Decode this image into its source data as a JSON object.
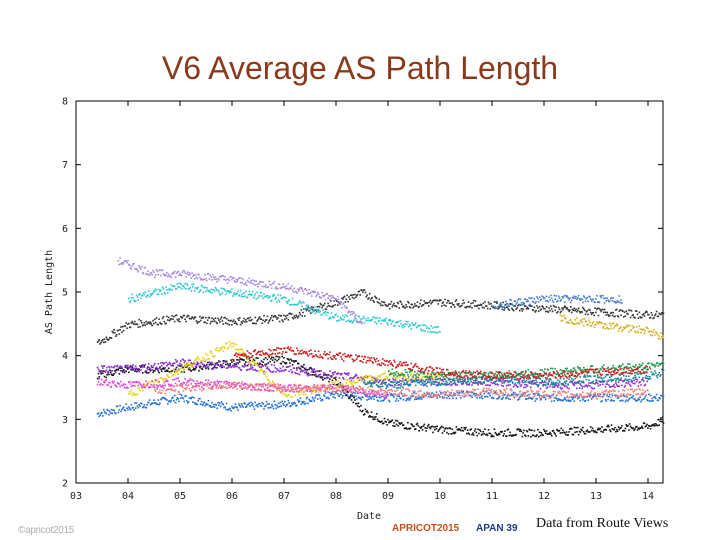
{
  "slide": {
    "title": "V6 Average AS Path Length",
    "credit": "Data from Route Views",
    "footer_left": "©apricot2015",
    "footer_logo_apricot": "APRICOT2015",
    "footer_logo_apan": "APAN 39"
  },
  "chart_data": {
    "type": "scatter",
    "title": "V6 Average AS Path Length",
    "xlabel": "Date",
    "ylabel": "AS Path Length",
    "x_ticks": [
      "03",
      "04",
      "05",
      "06",
      "07",
      "08",
      "09",
      "10",
      "11",
      "12",
      "13",
      "14"
    ],
    "x_range": [
      2003,
      2014.3
    ],
    "ylim": [
      2,
      8
    ],
    "y_ticks": [
      2,
      3,
      4,
      5,
      6,
      7,
      8
    ],
    "grid": false,
    "series": [
      {
        "name": "blue",
        "color": "#1e6fd9",
        "points": [
          [
            2003.4,
            3.1
          ],
          [
            2004,
            3.2
          ],
          [
            2005,
            3.35
          ],
          [
            2006,
            3.2
          ],
          [
            2007,
            3.25
          ],
          [
            2008,
            3.4
          ],
          [
            2009,
            3.35
          ],
          [
            2010,
            3.4
          ],
          [
            2011,
            3.4
          ],
          [
            2012,
            3.35
          ],
          [
            2013,
            3.35
          ],
          [
            2014,
            3.35
          ],
          [
            2014.3,
            3.35
          ]
        ]
      },
      {
        "name": "black",
        "color": "#111111",
        "points": [
          [
            2003.4,
            3.7
          ],
          [
            2004,
            3.8
          ],
          [
            2005,
            3.8
          ],
          [
            2006,
            3.9
          ],
          [
            2007,
            3.95
          ],
          [
            2008,
            3.6
          ],
          [
            2008.5,
            3.15
          ],
          [
            2009,
            2.95
          ],
          [
            2010,
            2.85
          ],
          [
            2011,
            2.8
          ],
          [
            2012,
            2.8
          ],
          [
            2013,
            2.85
          ],
          [
            2014,
            2.9
          ],
          [
            2014.3,
            3.0
          ]
        ]
      },
      {
        "name": "dark-gray",
        "color": "#333333",
        "points": [
          [
            2003.4,
            4.2
          ],
          [
            2004,
            4.5
          ],
          [
            2005,
            4.6
          ],
          [
            2006,
            4.55
          ],
          [
            2007,
            4.6
          ],
          [
            2008,
            4.85
          ],
          [
            2008.5,
            5.0
          ],
          [
            2009,
            4.8
          ],
          [
            2010,
            4.85
          ],
          [
            2011,
            4.8
          ],
          [
            2012,
            4.75
          ],
          [
            2013,
            4.7
          ],
          [
            2014,
            4.65
          ],
          [
            2014.3,
            4.65
          ]
        ]
      },
      {
        "name": "cyan",
        "color": "#2ec8d0",
        "points": [
          [
            2004,
            4.9
          ],
          [
            2005,
            5.1
          ],
          [
            2006,
            5.0
          ],
          [
            2007,
            4.9
          ],
          [
            2008,
            4.6
          ],
          [
            2009,
            4.55
          ],
          [
            2010,
            4.4
          ]
        ]
      },
      {
        "name": "lavender",
        "color": "#a98ae0",
        "points": [
          [
            2003.8,
            5.5
          ],
          [
            2004.5,
            5.3
          ],
          [
            2005,
            5.3
          ],
          [
            2006,
            5.2
          ],
          [
            2007,
            5.1
          ],
          [
            2008,
            4.9
          ],
          [
            2008.5,
            4.5
          ]
        ]
      },
      {
        "name": "purple",
        "color": "#8a2bd6",
        "points": [
          [
            2003.4,
            3.8
          ],
          [
            2004,
            3.8
          ],
          [
            2005,
            3.9
          ],
          [
            2006,
            3.85
          ],
          [
            2007,
            3.8
          ],
          [
            2008,
            3.7
          ],
          [
            2009,
            3.6
          ],
          [
            2010,
            3.6
          ],
          [
            2011,
            3.6
          ],
          [
            2012,
            3.55
          ],
          [
            2013,
            3.55
          ],
          [
            2014,
            3.6
          ]
        ]
      },
      {
        "name": "yellow",
        "color": "#e8d21a",
        "points": [
          [
            2004,
            3.4
          ],
          [
            2005,
            3.8
          ],
          [
            2006,
            4.2
          ],
          [
            2007,
            3.4
          ],
          [
            2008,
            3.55
          ],
          [
            2009,
            3.7
          ],
          [
            2010,
            3.65
          ]
        ]
      },
      {
        "name": "magenta",
        "color": "#e040e0",
        "points": [
          [
            2003.4,
            3.6
          ],
          [
            2004,
            3.55
          ],
          [
            2005,
            3.6
          ],
          [
            2006,
            3.55
          ],
          [
            2007,
            3.5
          ],
          [
            2008,
            3.5
          ],
          [
            2009,
            3.4
          ]
        ]
      },
      {
        "name": "pink",
        "color": "#f08080",
        "points": [
          [
            2004.5,
            3.45
          ],
          [
            2005,
            3.5
          ],
          [
            2006,
            3.55
          ],
          [
            2007,
            3.5
          ],
          [
            2008,
            3.5
          ],
          [
            2009,
            3.45
          ],
          [
            2010,
            3.4
          ],
          [
            2011,
            3.45
          ],
          [
            2012,
            3.4
          ],
          [
            2013,
            3.4
          ],
          [
            2014,
            3.45
          ]
        ]
      },
      {
        "name": "teal",
        "color": "#118899",
        "points": [
          [
            2008.5,
            3.6
          ],
          [
            2009,
            3.55
          ],
          [
            2010,
            3.6
          ],
          [
            2011,
            3.65
          ],
          [
            2012,
            3.6
          ],
          [
            2013,
            3.65
          ],
          [
            2014,
            3.7
          ],
          [
            2014.3,
            3.75
          ]
        ]
      },
      {
        "name": "green",
        "color": "#1a9a4a",
        "points": [
          [
            2009,
            3.75
          ],
          [
            2010,
            3.7
          ],
          [
            2011,
            3.7
          ],
          [
            2012,
            3.75
          ],
          [
            2013,
            3.8
          ],
          [
            2014,
            3.85
          ],
          [
            2014.3,
            3.9
          ]
        ]
      },
      {
        "name": "red",
        "color": "#cc1a1a",
        "points": [
          [
            2006,
            4.0
          ],
          [
            2007,
            4.1
          ],
          [
            2008,
            4.0
          ],
          [
            2009,
            3.9
          ],
          [
            2010,
            3.75
          ],
          [
            2011,
            3.7
          ],
          [
            2012,
            3.7
          ],
          [
            2013,
            3.75
          ],
          [
            2014,
            3.8
          ]
        ]
      },
      {
        "name": "steel-blue",
        "color": "#4a7fc8",
        "points": [
          [
            2011,
            4.8
          ],
          [
            2012,
            4.9
          ],
          [
            2013,
            4.9
          ],
          [
            2013.5,
            4.9
          ]
        ]
      },
      {
        "name": "gold",
        "color": "#d4b020",
        "points": [
          [
            2012.3,
            4.6
          ],
          [
            2013,
            4.5
          ],
          [
            2014,
            4.4
          ],
          [
            2014.3,
            4.3
          ]
        ]
      }
    ]
  }
}
